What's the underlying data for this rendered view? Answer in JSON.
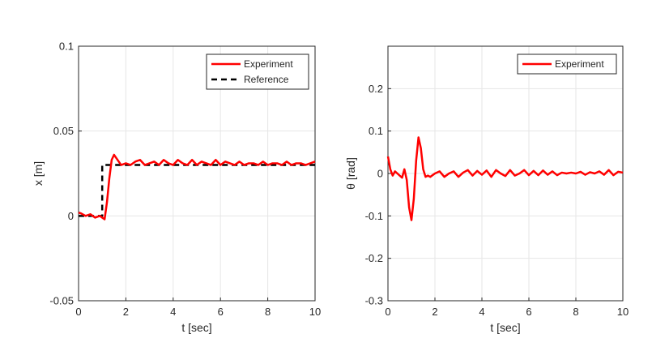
{
  "chart_data": [
    {
      "type": "line",
      "xlabel": "t [sec]",
      "ylabel": "x [m]",
      "xlim": [
        0,
        10
      ],
      "ylim": [
        -0.05,
        0.1
      ],
      "xticks": [
        "0",
        "2",
        "4",
        "6",
        "8",
        "10"
      ],
      "yticks": [
        "-0.05",
        "0",
        "0.05",
        "0.1"
      ],
      "grid": true,
      "legend_position": "top-right",
      "series": [
        {
          "name": "Experiment",
          "color": "#ff0000",
          "style": "solid",
          "x": [
            0,
            0.1,
            0.3,
            0.5,
            0.7,
            0.9,
            1.0,
            1.1,
            1.2,
            1.3,
            1.4,
            1.5,
            1.6,
            1.8,
            2.0,
            2.2,
            2.4,
            2.6,
            2.8,
            3.0,
            3.2,
            3.4,
            3.6,
            3.8,
            4.0,
            4.2,
            4.4,
            4.6,
            4.8,
            5.0,
            5.2,
            5.4,
            5.6,
            5.8,
            6.0,
            6.2,
            6.4,
            6.6,
            6.8,
            7.0,
            7.2,
            7.4,
            7.6,
            7.8,
            8.0,
            8.2,
            8.4,
            8.6,
            8.8,
            9.0,
            9.2,
            9.4,
            9.6,
            9.8,
            10.0
          ],
          "y": [
            0.002,
            0.0015,
            0.0,
            0.001,
            -0.001,
            0.0,
            -0.001,
            -0.002,
            0.008,
            0.022,
            0.033,
            0.036,
            0.034,
            0.03,
            0.031,
            0.03,
            0.032,
            0.033,
            0.03,
            0.031,
            0.032,
            0.03,
            0.033,
            0.031,
            0.03,
            0.033,
            0.031,
            0.03,
            0.033,
            0.03,
            0.032,
            0.031,
            0.03,
            0.033,
            0.03,
            0.032,
            0.031,
            0.03,
            0.032,
            0.03,
            0.031,
            0.031,
            0.03,
            0.032,
            0.03,
            0.031,
            0.031,
            0.03,
            0.032,
            0.03,
            0.031,
            0.031,
            0.03,
            0.031,
            0.032
          ]
        },
        {
          "name": "Reference",
          "color": "#000000",
          "style": "dashed",
          "x": [
            0,
            1.0,
            1.0,
            10.0
          ],
          "y": [
            0,
            0,
            0.03,
            0.03
          ]
        }
      ]
    },
    {
      "type": "line",
      "xlabel": "t [sec]",
      "ylabel": "θ [rad]",
      "xlim": [
        0,
        10
      ],
      "ylim": [
        -0.3,
        0.3
      ],
      "xticks": [
        "0",
        "2",
        "4",
        "6",
        "8",
        "10"
      ],
      "yticks": [
        "-0.3",
        "-0.2",
        "-0.1",
        "0",
        "0.1",
        "0.2"
      ],
      "grid": true,
      "legend_position": "top-right",
      "series": [
        {
          "name": "Experiment",
          "color": "#ff0000",
          "style": "solid",
          "x": [
            0,
            0.1,
            0.2,
            0.3,
            0.4,
            0.5,
            0.6,
            0.7,
            0.8,
            0.9,
            1.0,
            1.1,
            1.2,
            1.3,
            1.4,
            1.5,
            1.6,
            1.7,
            1.8,
            2.0,
            2.2,
            2.4,
            2.6,
            2.8,
            3.0,
            3.2,
            3.4,
            3.6,
            3.8,
            4.0,
            4.2,
            4.4,
            4.6,
            4.8,
            5.0,
            5.2,
            5.4,
            5.6,
            5.8,
            6.0,
            6.2,
            6.4,
            6.6,
            6.8,
            7.0,
            7.2,
            7.4,
            7.6,
            7.8,
            8.0,
            8.2,
            8.4,
            8.6,
            8.8,
            9.0,
            9.2,
            9.4,
            9.6,
            9.8,
            10.0
          ],
          "y": [
            0.04,
            0.01,
            -0.005,
            0.005,
            0.0,
            -0.005,
            -0.01,
            0.01,
            -0.015,
            -0.08,
            -0.11,
            -0.06,
            0.03,
            0.085,
            0.06,
            0.01,
            -0.008,
            -0.005,
            -0.008,
            0.0,
            0.005,
            -0.008,
            0.0,
            0.005,
            -0.008,
            0.002,
            0.008,
            -0.005,
            0.006,
            -0.003,
            0.007,
            -0.008,
            0.008,
            0.0,
            -0.006,
            0.008,
            -0.005,
            0.0,
            0.008,
            -0.004,
            0.006,
            -0.004,
            0.007,
            -0.003,
            0.005,
            -0.004,
            0.002,
            0.0,
            0.002,
            0.0,
            0.004,
            -0.003,
            0.003,
            0.0,
            0.005,
            -0.003,
            0.008,
            -0.004,
            0.004,
            0.002
          ]
        }
      ]
    }
  ]
}
